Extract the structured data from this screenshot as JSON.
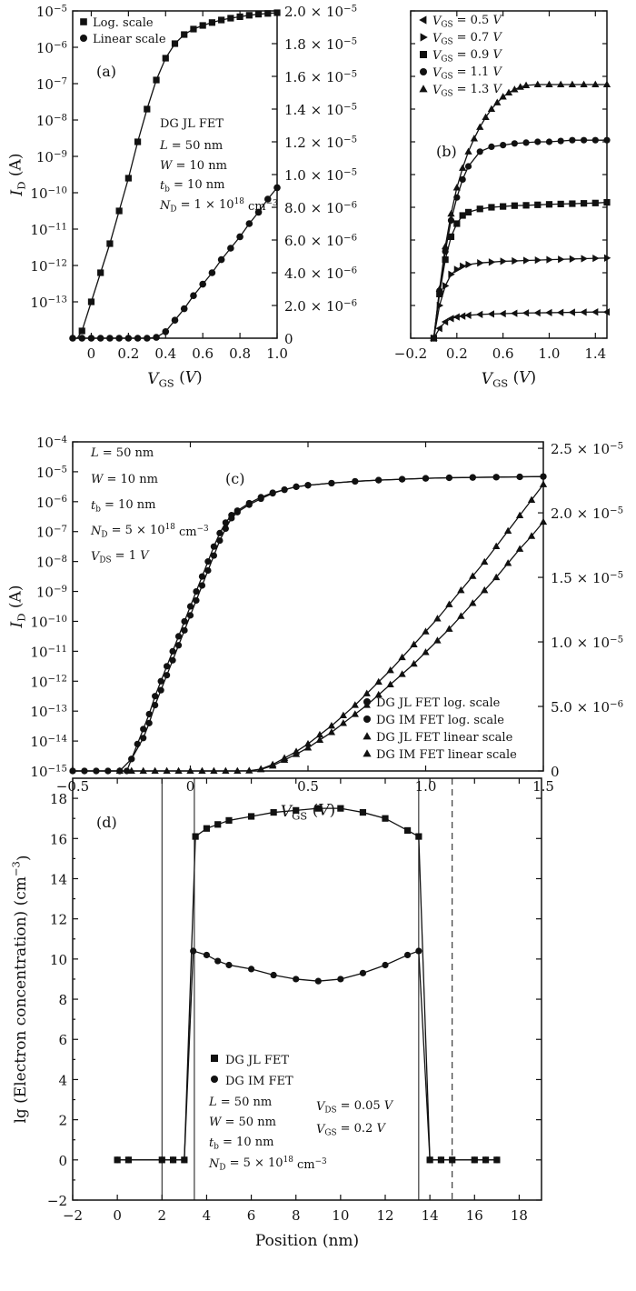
{
  "chart_data": [
    {
      "panel": "(a)",
      "type": "line",
      "xlabel": "V_GS (V)",
      "ylabel": "I_D (A)",
      "xlim": [
        -0.1,
        1.0
      ],
      "ylim_log_exp": [
        -14,
        -5
      ],
      "ylim_right": [
        0,
        2e-05
      ],
      "x_ticks": [
        "0",
        "0.2",
        "0.4",
        "0.6",
        "0.8",
        "1.0"
      ],
      "y_left_ticks": [
        "10^-13",
        "10^-12",
        "10^-11",
        "10^-10",
        "10^-9",
        "10^-8",
        "10^-7",
        "10^-6",
        "10^-5"
      ],
      "y_right_ticks": [
        "0",
        "2.0 × 10^-6",
        "4.0 × 10^-6",
        "6.0 × 10^-6",
        "8.0 × 10^-6",
        "1.0 × 10^-5",
        "1.2 × 10^-5",
        "1.4 × 10^-5",
        "1.6 × 10^-5",
        "1.8 × 10^-5",
        "2.0 × 10^-5"
      ],
      "legend": [
        "Log. scale",
        "Linear scale"
      ],
      "annotation": [
        "DG JL FET",
        "L = 50 nm",
        "W = 10 nm",
        "t_b = 10 nm",
        "N_D = 1 × 10^18 cm^-3"
      ],
      "series": [
        {
          "name": "Log. scale",
          "marker": "square",
          "axis": "left-log",
          "x": [
            -0.1,
            -0.075,
            -0.05,
            0,
            0.05,
            0.1,
            0.15,
            0.2,
            0.25,
            0.3,
            0.35,
            0.4,
            0.45,
            0.5,
            0.55,
            0.6,
            0.65,
            0.7,
            0.75,
            0.8,
            0.85,
            0.9,
            0.95,
            1.0
          ],
          "y": [
            -14.5,
            -14.2,
            -13.8,
            -13.0,
            -12.2,
            -11.4,
            -10.5,
            -9.6,
            -8.6,
            -7.7,
            -6.9,
            -6.3,
            -5.9,
            -5.65,
            -5.5,
            -5.4,
            -5.32,
            -5.25,
            -5.2,
            -5.16,
            -5.12,
            -5.09,
            -5.07,
            -5.05
          ]
        },
        {
          "name": "Linear scale",
          "marker": "circle",
          "axis": "right-linear",
          "x": [
            -0.1,
            -0.05,
            0,
            0.05,
            0.1,
            0.15,
            0.2,
            0.25,
            0.3,
            0.35,
            0.4,
            0.45,
            0.5,
            0.55,
            0.6,
            0.65,
            0.7,
            0.75,
            0.8,
            0.85,
            0.9,
            0.95,
            1.0
          ],
          "y": [
            0,
            0,
            0,
            0,
            0,
            0,
            0,
            0,
            0,
            5e-08,
            4e-07,
            1.1e-06,
            1.8e-06,
            2.6e-06,
            3.3e-06,
            4e-06,
            4.8e-06,
            5.5e-06,
            6.2e-06,
            7e-06,
            7.7e-06,
            8.5e-06,
            9.2e-06
          ]
        }
      ]
    },
    {
      "panel": "(b)",
      "type": "line",
      "xlabel": "V_GS (V)",
      "xlim": [
        -0.2,
        1.5
      ],
      "ylim": [
        0,
        2e-05
      ],
      "x_ticks": [
        "-0.2",
        "0.2",
        "0.6",
        "1.0",
        "1.4"
      ],
      "legend": [
        "V_GS = 0.5 V",
        "V_GS = 0.7 V",
        "V_GS = 0.9 V",
        "V_GS = 1.1 V",
        "V_GS = 1.3 V"
      ],
      "series": [
        {
          "name": "V_GS = 0.5 V",
          "marker": "triangle-left",
          "x": [
            0,
            0.05,
            0.1,
            0.15,
            0.2,
            0.25,
            0.3,
            0.4,
            0.5,
            0.6,
            0.7,
            0.8,
            0.9,
            1.0,
            1.1,
            1.2,
            1.3,
            1.4,
            1.5
          ],
          "y": [
            0,
            6e-07,
            1e-06,
            1.2e-06,
            1.3e-06,
            1.35e-06,
            1.4e-06,
            1.45e-06,
            1.48e-06,
            1.5e-06,
            1.52e-06,
            1.54e-06,
            1.55e-06,
            1.56e-06,
            1.57e-06,
            1.58e-06,
            1.59e-06,
            1.6e-06,
            1.6e-06
          ]
        },
        {
          "name": "V_GS = 0.7 V",
          "marker": "triangle-right",
          "x": [
            0,
            0.05,
            0.1,
            0.15,
            0.2,
            0.25,
            0.3,
            0.4,
            0.5,
            0.6,
            0.7,
            0.8,
            0.9,
            1.0,
            1.1,
            1.2,
            1.3,
            1.4,
            1.5
          ],
          "y": [
            0,
            2e-06,
            3.2e-06,
            3.9e-06,
            4.2e-06,
            4.4e-06,
            4.5e-06,
            4.6e-06,
            4.65e-06,
            4.7e-06,
            4.72e-06,
            4.75e-06,
            4.77e-06,
            4.8e-06,
            4.82e-06,
            4.84e-06,
            4.86e-06,
            4.88e-06,
            4.9e-06
          ]
        },
        {
          "name": "V_GS = 0.9 V",
          "marker": "square",
          "x": [
            0,
            0.05,
            0.1,
            0.15,
            0.2,
            0.25,
            0.3,
            0.4,
            0.5,
            0.6,
            0.7,
            0.8,
            0.9,
            1.0,
            1.1,
            1.2,
            1.3,
            1.4,
            1.5
          ],
          "y": [
            0,
            2.7e-06,
            4.8e-06,
            6.2e-06,
            7e-06,
            7.5e-06,
            7.7e-06,
            7.9e-06,
            8e-06,
            8.05e-06,
            8.1e-06,
            8.12e-06,
            8.15e-06,
            8.18e-06,
            8.2e-06,
            8.22e-06,
            8.24e-06,
            8.26e-06,
            8.3e-06
          ]
        },
        {
          "name": "V_GS = 1.1 V",
          "marker": "circle",
          "x": [
            0,
            0.05,
            0.1,
            0.15,
            0.2,
            0.25,
            0.3,
            0.4,
            0.5,
            0.6,
            0.7,
            0.8,
            0.9,
            1.0,
            1.1,
            1.2,
            1.3,
            1.4,
            1.5
          ],
          "y": [
            0,
            2.9e-06,
            5.3e-06,
            7.2e-06,
            8.6e-06,
            9.7e-06,
            1.05e-05,
            1.14e-05,
            1.17e-05,
            1.18e-05,
            1.19e-05,
            1.195e-05,
            1.2e-05,
            1.2e-05,
            1.205e-05,
            1.21e-05,
            1.21e-05,
            1.21e-05,
            1.21e-05
          ]
        },
        {
          "name": "V_GS = 1.3 V",
          "marker": "triangle-up",
          "x": [
            0,
            0.05,
            0.1,
            0.15,
            0.2,
            0.25,
            0.3,
            0.35,
            0.4,
            0.45,
            0.5,
            0.55,
            0.6,
            0.65,
            0.7,
            0.75,
            0.8,
            0.9,
            1.0,
            1.1,
            1.2,
            1.3,
            1.4,
            1.5
          ],
          "y": [
            0,
            3e-06,
            5.6e-06,
            7.6e-06,
            9.2e-06,
            1.04e-05,
            1.14e-05,
            1.22e-05,
            1.29e-05,
            1.35e-05,
            1.4e-05,
            1.44e-05,
            1.475e-05,
            1.5e-05,
            1.52e-05,
            1.535e-05,
            1.545e-05,
            1.55e-05,
            1.55e-05,
            1.55e-05,
            1.55e-05,
            1.55e-05,
            1.55e-05,
            1.55e-05
          ]
        }
      ]
    },
    {
      "panel": "(c)",
      "type": "line",
      "xlabel": "V_GS (V)",
      "ylabel": "I_D (A)",
      "xlim": [
        -0.5,
        1.5
      ],
      "ylim_log_exp": [
        -15,
        -4
      ],
      "ylim_right": [
        0,
        2.5e-05
      ],
      "x_ticks": [
        "-0.5",
        "0",
        "0.5",
        "1.0",
        "1.5"
      ],
      "y_left_ticks": [
        "10^-15",
        "10^-14",
        "10^-13",
        "10^-12",
        "10^-11",
        "10^-10",
        "10^-9",
        "10^-8",
        "10^-7",
        "10^-6",
        "10^-5",
        "10^-4"
      ],
      "y_right_ticks": [
        "0",
        "5.0 × 10^-6",
        "1.0 × 10^-5",
        "1.5 × 10^-5",
        "2.0 × 10^-5",
        "2.5 × 10^-5"
      ],
      "legend": [
        "DG JL FET log. scale",
        "DG IM FET log. scale",
        "DG JL FET linear scale",
        "DG IM FET linear scale"
      ],
      "annotation": [
        "L = 50 nm",
        "W = 10 nm",
        "t_b = 10 nm",
        "N_D = 5 × 10^18 cm^-3",
        "V_DS = 1 V"
      ],
      "series": [
        {
          "name": "DG JL FET log. scale",
          "marker": "circle",
          "axis": "left-log",
          "x": [
            -0.5,
            -0.45,
            -0.4,
            -0.35,
            -0.3,
            -0.25,
            -0.225,
            -0.2,
            -0.175,
            -0.15,
            -0.125,
            -0.1,
            -0.075,
            -0.05,
            -0.025,
            0,
            0.025,
            0.05,
            0.075,
            0.1,
            0.125,
            0.15,
            0.175,
            0.2,
            0.25,
            0.3,
            0.35,
            0.4,
            0.45,
            0.5,
            0.6,
            0.7,
            0.8,
            0.9,
            1.0,
            1.1,
            1.2,
            1.3,
            1.4,
            1.5
          ],
          "y": [
            -15,
            -15,
            -15,
            -15,
            -15,
            -14.6,
            -14.1,
            -13.6,
            -13.1,
            -12.5,
            -12.0,
            -11.5,
            -11.0,
            -10.5,
            -10.0,
            -9.5,
            -9.0,
            -8.5,
            -8.0,
            -7.5,
            -7.05,
            -6.7,
            -6.45,
            -6.3,
            -6.05,
            -5.85,
            -5.7,
            -5.6,
            -5.5,
            -5.45,
            -5.38,
            -5.32,
            -5.28,
            -5.25,
            -5.22,
            -5.2,
            -5.19,
            -5.18,
            -5.17,
            -5.16
          ]
        },
        {
          "name": "DG IM FET log. scale",
          "marker": "circle",
          "axis": "left-log",
          "x": [
            -0.5,
            -0.45,
            -0.4,
            -0.35,
            -0.3,
            -0.27,
            -0.25,
            -0.2,
            -0.175,
            -0.15,
            -0.125,
            -0.1,
            -0.075,
            -0.05,
            -0.025,
            0,
            0.025,
            0.05,
            0.075,
            0.1,
            0.125,
            0.15,
            0.175,
            0.2,
            0.25,
            0.3,
            0.35,
            0.4,
            0.45,
            0.5,
            0.6,
            0.7,
            0.8,
            0.9,
            1.0,
            1.1,
            1.2,
            1.3,
            1.4,
            1.5
          ],
          "y": [
            -15,
            -15,
            -15,
            -15,
            -15,
            -15,
            -14.6,
            -13.9,
            -13.4,
            -12.8,
            -12.3,
            -11.8,
            -11.3,
            -10.8,
            -10.3,
            -9.8,
            -9.3,
            -8.8,
            -8.3,
            -7.8,
            -7.3,
            -6.9,
            -6.55,
            -6.35,
            -6.1,
            -5.9,
            -5.72,
            -5.6,
            -5.5,
            -5.45,
            -5.38,
            -5.32,
            -5.28,
            -5.25,
            -5.22,
            -5.2,
            -5.19,
            -5.18,
            -5.17,
            -5.16
          ]
        },
        {
          "name": "DG JL FET linear scale",
          "marker": "triangle-up",
          "axis": "right-linear",
          "x": [
            -0.3,
            -0.25,
            -0.2,
            -0.15,
            -0.1,
            -0.05,
            0,
            0.05,
            0.1,
            0.15,
            0.2,
            0.25,
            0.3,
            0.35,
            0.4,
            0.45,
            0.5,
            0.55,
            0.6,
            0.65,
            0.7,
            0.75,
            0.8,
            0.85,
            0.9,
            0.95,
            1.0,
            1.05,
            1.1,
            1.15,
            1.2,
            1.25,
            1.3,
            1.35,
            1.4,
            1.45,
            1.5
          ],
          "y": [
            0,
            0,
            0,
            0,
            0,
            0,
            0,
            0,
            0,
            0,
            0,
            2e-08,
            1.5e-07,
            5e-07,
            1e-06,
            1.5e-06,
            2.1e-06,
            2.8e-06,
            3.5e-06,
            4.3e-06,
            5.1e-06,
            6e-06,
            6.9e-06,
            7.8e-06,
            8.8e-06,
            9.8e-06,
            1.08e-05,
            1.18e-05,
            1.29e-05,
            1.4e-05,
            1.51e-05,
            1.62e-05,
            1.74e-05,
            1.86e-05,
            1.98e-05,
            2.1e-05,
            2.22e-05
          ]
        },
        {
          "name": "DG IM FET linear scale",
          "marker": "triangle-up",
          "axis": "right-linear",
          "x": [
            0.3,
            0.35,
            0.4,
            0.45,
            0.5,
            0.55,
            0.6,
            0.65,
            0.7,
            0.75,
            0.8,
            0.85,
            0.9,
            0.95,
            1.0,
            1.05,
            1.1,
            1.15,
            1.2,
            1.25,
            1.3,
            1.35,
            1.4,
            1.45,
            1.5
          ],
          "y": [
            1.2e-07,
            4e-07,
            8.5e-07,
            1.3e-06,
            1.8e-06,
            2.4e-06,
            3e-06,
            3.7e-06,
            4.4e-06,
            5.1e-06,
            5.9e-06,
            6.7e-06,
            7.5e-06,
            8.3e-06,
            9.2e-06,
            1.01e-05,
            1.1e-05,
            1.2e-05,
            1.3e-05,
            1.4e-05,
            1.5e-05,
            1.61e-05,
            1.72e-05,
            1.82e-05,
            1.93e-05
          ]
        }
      ]
    },
    {
      "panel": "(d)",
      "type": "line",
      "xlabel": "Position (nm)",
      "ylabel": "lg (Electron concentration) (cm^-3)",
      "xlim": [
        -2,
        19
      ],
      "ylim": [
        -2,
        19
      ],
      "x_ticks": [
        "-2",
        "0",
        "2",
        "4",
        "6",
        "8",
        "10",
        "12",
        "14",
        "16",
        "18"
      ],
      "y_ticks": [
        "-2",
        "0",
        "2",
        "4",
        "6",
        "8",
        "10",
        "12",
        "14",
        "16",
        "18"
      ],
      "legend": [
        "DG JL FET",
        "DG IM FET"
      ],
      "annotation": [
        "L = 50 nm",
        "W = 50 nm",
        "t_b = 10 nm",
        "N_D = 5 × 10^18 cm^-3",
        "V_DS = 0.05 V",
        "V_GS = 0.2 V"
      ],
      "series": [
        {
          "name": "DG JL FET",
          "marker": "square",
          "x": [
            0,
            0.5,
            2,
            2.5,
            3,
            3.5,
            4,
            4.5,
            5,
            6,
            7,
            8,
            9,
            10,
            11,
            12,
            13,
            13.5,
            14,
            14.5,
            15,
            16,
            16.5,
            17
          ],
          "y": [
            0,
            0,
            0,
            0,
            0,
            16.1,
            16.5,
            16.7,
            16.9,
            17.1,
            17.3,
            17.4,
            17.5,
            17.5,
            17.3,
            17.0,
            16.4,
            16.1,
            0,
            0,
            0,
            0,
            0,
            0
          ]
        },
        {
          "name": "DG IM FET",
          "marker": "circle",
          "x": [
            0,
            0.5,
            2,
            2.5,
            3,
            3.4,
            4,
            4.5,
            5,
            6,
            7,
            8,
            9,
            10,
            11,
            12,
            13,
            13.5,
            14,
            14.5,
            15,
            16,
            16.5,
            17
          ],
          "y": [
            0,
            0,
            0,
            0,
            0,
            10.4,
            10.2,
            9.9,
            9.7,
            9.5,
            9.2,
            9.0,
            8.9,
            9.0,
            9.3,
            9.7,
            10.2,
            10.4,
            0,
            0,
            0,
            0,
            0,
            0
          ]
        }
      ],
      "vlines_solid": [
        2,
        3.45,
        13.5
      ],
      "vlines_dashed": [
        15
      ]
    }
  ]
}
